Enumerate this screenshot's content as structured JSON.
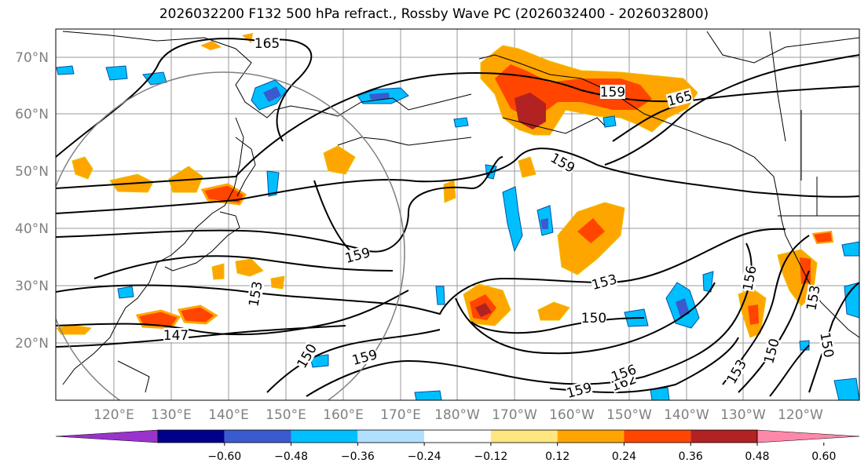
{
  "title": "2026032200 F132 500 hPa refract., Rossby Wave PC (2026032400 - 2026032800)",
  "lat_labels": [
    "70°N",
    "60°N",
    "50°N",
    "40°N",
    "30°N",
    "20°N"
  ],
  "lon_labels": [
    "120°E",
    "130°E",
    "140°E",
    "150°E",
    "160°E",
    "170°E",
    "180°W",
    "170°W",
    "160°W",
    "150°W",
    "140°W",
    "130°W",
    "120°W"
  ],
  "contour_labels": [
    "165",
    "165",
    "162",
    "159",
    "159",
    "159",
    "159",
    "159",
    "156",
    "156",
    "153",
    "153",
    "153",
    "153",
    "150",
    "150",
    "150",
    "150",
    "147"
  ],
  "colorbar": {
    "ticks": [
      "−0.60",
      "−0.48",
      "−0.36",
      "−0.24",
      "−0.12",
      "0.12",
      "0.24",
      "0.36",
      "0.48",
      "0.60"
    ],
    "colors": [
      "#9933cc",
      "#00008b",
      "#3a5bd0",
      "#00bfff",
      "#b0e0ff",
      "#ffffff",
      "#ffe680",
      "#ffa500",
      "#ff4500",
      "#b22222",
      "#ff88aa"
    ]
  }
}
